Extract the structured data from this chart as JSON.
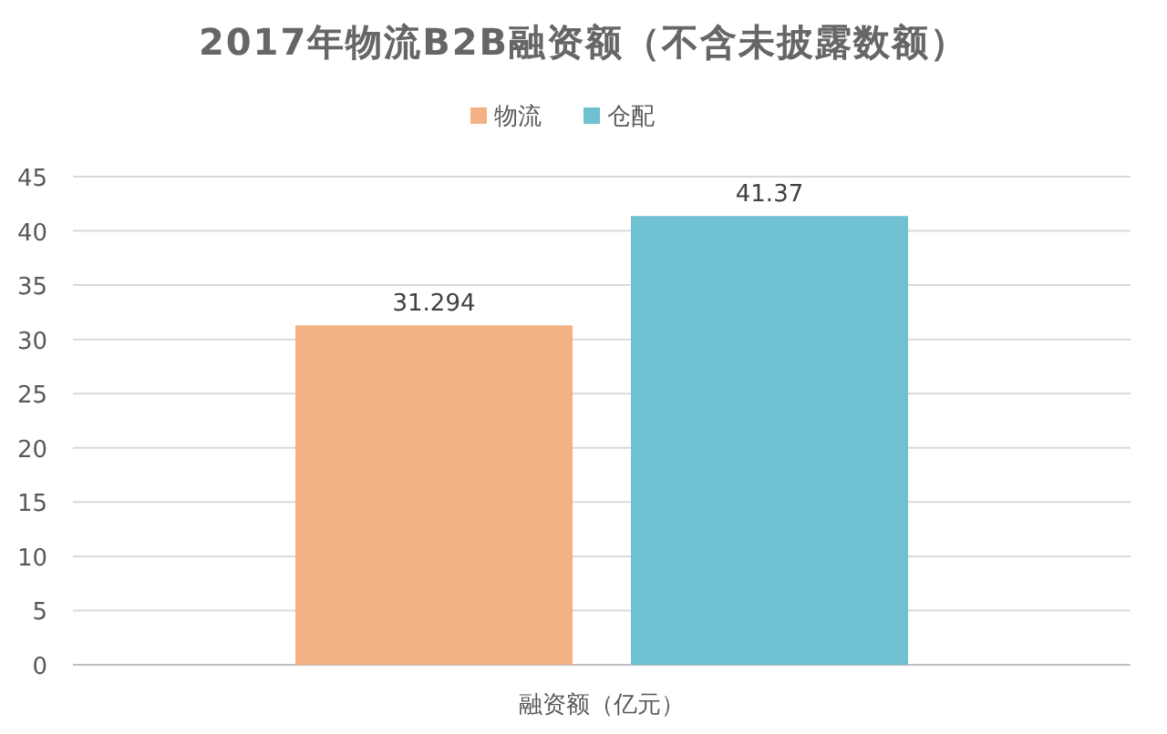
{
  "chart_data": {
    "type": "bar",
    "title": "2017年物流B2B融资额（不含未披露数额）",
    "categories": [
      "融资额（亿元）"
    ],
    "series": [
      {
        "name": "物流",
        "color": "#f4b183",
        "values": [
          31.294
        ]
      },
      {
        "name": "仓配",
        "color": "#6fc0d0",
        "values": [
          41.37
        ]
      }
    ],
    "ylim": [
      0,
      45
    ],
    "yticks": [
      0,
      5,
      10,
      15,
      20,
      25,
      30,
      35,
      40,
      45
    ],
    "grid": "y",
    "legend": "top",
    "data_labels": true
  }
}
